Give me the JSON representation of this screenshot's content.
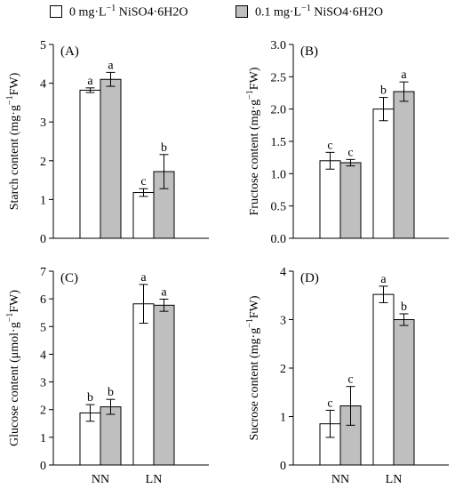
{
  "legend": {
    "items": [
      {
        "name": "0 mg·L⁻¹ NiSO₄·6H₂O",
        "parts": [
          "0 mg·L",
          "−1",
          " NiSO4·6H2O"
        ],
        "color": "#ffffff"
      },
      {
        "name": "0.1 mg·L⁻¹ NiSO₄·6H₂O",
        "parts": [
          "0.1 mg·L",
          "−1",
          " NiSO4·6H2O"
        ],
        "color": "#bfbfbf"
      }
    ]
  },
  "chart_data": [
    {
      "panel_label": "(A)",
      "type": "bar",
      "categories": [
        "NN",
        "LN"
      ],
      "show_category_labels": false,
      "ylabel": "Starch content (mg·g⁻¹FW)",
      "ylabel_parts": [
        "Starch content (mg·g",
        "−1",
        "FW)"
      ],
      "ylim": [
        0,
        5
      ],
      "yticks": [
        "0",
        "1",
        "2",
        "3",
        "4",
        "5"
      ],
      "series": [
        {
          "name": "0 mg·L⁻¹ NiSO₄·6H₂O",
          "color": "#ffffff",
          "values": [
            3.82,
            1.18
          ],
          "errors": [
            0.06,
            0.1
          ],
          "letters": [
            "a",
            "c"
          ]
        },
        {
          "name": "0.1 mg·L⁻¹ NiSO₄·6H₂O",
          "color": "#bfbfbf",
          "values": [
            4.1,
            1.72
          ],
          "errors": [
            0.18,
            0.44
          ],
          "letters": [
            "a",
            "b"
          ]
        }
      ]
    },
    {
      "panel_label": "(B)",
      "type": "bar",
      "categories": [
        "NN",
        "LN"
      ],
      "show_category_labels": false,
      "ylabel": "Fructose content (mg·g⁻¹FW)",
      "ylabel_parts": [
        "Fructose content (mg·g",
        "−1",
        "FW)"
      ],
      "ylim": [
        0,
        3
      ],
      "yticks": [
        "0.0",
        "0.5",
        "1.0",
        "1.5",
        "2.0",
        "2.5",
        "3.0"
      ],
      "series": [
        {
          "name": "0 mg·L⁻¹ NiSO₄·6H₂O",
          "color": "#ffffff",
          "values": [
            1.2,
            2.0
          ],
          "errors": [
            0.13,
            0.18
          ],
          "letters": [
            "c",
            "b"
          ]
        },
        {
          "name": "0.1 mg·L⁻¹ NiSO₄·6H₂O",
          "color": "#bfbfbf",
          "values": [
            1.17,
            2.27
          ],
          "errors": [
            0.05,
            0.15
          ],
          "letters": [
            "c",
            "a"
          ]
        }
      ]
    },
    {
      "panel_label": "(C)",
      "type": "bar",
      "categories": [
        "NN",
        "LN"
      ],
      "show_category_labels": true,
      "ylabel": "Glucose content (μmol·g⁻¹FW)",
      "ylabel_parts": [
        "Glucose content (μmol·g",
        "−1",
        "FW)"
      ],
      "ylim": [
        0,
        7
      ],
      "yticks": [
        "0",
        "1",
        "2",
        "3",
        "4",
        "5",
        "6",
        "7"
      ],
      "series": [
        {
          "name": "0 mg·L⁻¹ NiSO₄·6H₂O",
          "color": "#ffffff",
          "values": [
            1.88,
            5.82
          ],
          "errors": [
            0.3,
            0.7
          ],
          "letters": [
            "b",
            "a"
          ]
        },
        {
          "name": "0.1 mg·L⁻¹ NiSO₄·6H₂O",
          "color": "#bfbfbf",
          "values": [
            2.1,
            5.77
          ],
          "errors": [
            0.27,
            0.22
          ],
          "letters": [
            "b",
            "a"
          ]
        }
      ]
    },
    {
      "panel_label": "(D)",
      "type": "bar",
      "categories": [
        "NN",
        "LN"
      ],
      "show_category_labels": true,
      "ylabel": "Sucrose content (mg·g⁻¹FW)",
      "ylabel_parts": [
        "Sucrose content (mg·g",
        "−1",
        "FW)"
      ],
      "ylim": [
        0,
        4
      ],
      "yticks": [
        "0",
        "1",
        "2",
        "3",
        "4"
      ],
      "series": [
        {
          "name": "0 mg·L⁻¹ NiSO₄·6H₂O",
          "color": "#ffffff",
          "values": [
            0.85,
            3.52
          ],
          "errors": [
            0.28,
            0.17
          ],
          "letters": [
            "c",
            "a"
          ]
        },
        {
          "name": "0.1 mg·L⁻¹ NiSO₄·6H₂O",
          "color": "#bfbfbf",
          "values": [
            1.22,
            3.0
          ],
          "errors": [
            0.4,
            0.12
          ],
          "letters": [
            "c",
            "b"
          ]
        }
      ]
    }
  ]
}
